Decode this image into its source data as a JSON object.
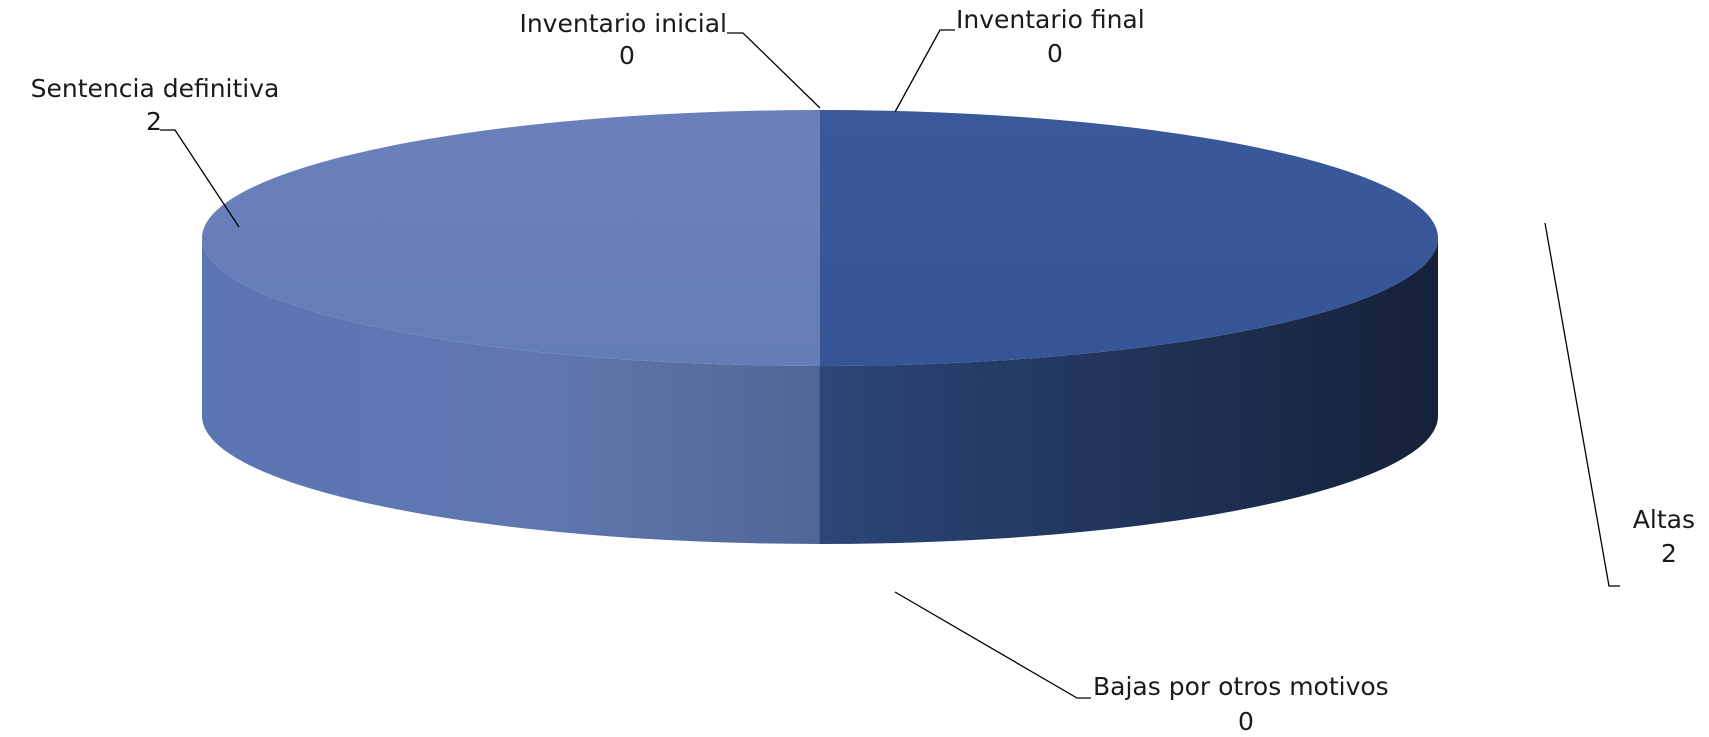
{
  "chart_data": {
    "type": "pie",
    "style": "3d",
    "categories": [
      "Inventario inicial",
      "Altas",
      "Bajas por otros motivos",
      "Sentencia definitiva",
      "Inventario final"
    ],
    "values": [
      0,
      2,
      0,
      2,
      0
    ],
    "value_labels": [
      "0",
      "2",
      "0",
      "2",
      "0"
    ],
    "colors": [
      "#6f8bc6",
      "#365a9b",
      "#5470a4",
      "#667fb8",
      "#6f8bc6"
    ],
    "title": "",
    "legend": "none"
  }
}
